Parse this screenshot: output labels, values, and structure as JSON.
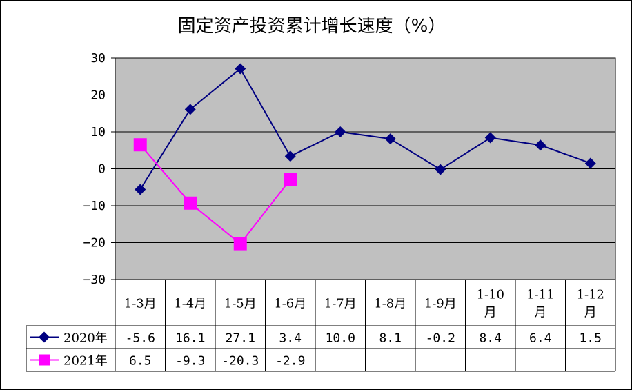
{
  "chart_data": {
    "type": "line",
    "title": "固定资产投资累计增长速度（%）",
    "categories": [
      [
        "1-3月"
      ],
      [
        "1-4月"
      ],
      [
        "1-5月"
      ],
      [
        "1-6月"
      ],
      [
        "1-7月"
      ],
      [
        "1-8月"
      ],
      [
        "1-9月"
      ],
      [
        "1-10",
        "月"
      ],
      [
        "1-11",
        "月"
      ],
      [
        "1-12",
        "月"
      ]
    ],
    "y_ticks": [
      "30",
      "20",
      "10",
      "0",
      "-10",
      "-20",
      "-30"
    ],
    "ylim": [
      -30,
      30
    ],
    "grid": true,
    "plot_background": "#C0C0C0",
    "series": [
      {
        "name": "2020年",
        "color": "#000080",
        "marker": "diamond",
        "values": [
          -5.6,
          16.1,
          27.1,
          3.4,
          10.0,
          8.1,
          -0.2,
          8.4,
          6.4,
          1.5
        ],
        "labels": [
          "-5.6",
          "16.1",
          "27.1",
          "3.4",
          "10.0",
          "8.1",
          "-0.2",
          "8.4",
          "6.4",
          "1.5"
        ]
      },
      {
        "name": "2021年",
        "color": "#FF00FF",
        "marker": "square",
        "values": [
          6.5,
          -9.3,
          -20.3,
          -2.9,
          null,
          null,
          null,
          null,
          null,
          null
        ],
        "labels": [
          "6.5",
          "-9.3",
          "-20.3",
          "-2.9",
          "",
          "",
          "",
          "",
          "",
          ""
        ]
      }
    ],
    "legend": "data-table"
  }
}
